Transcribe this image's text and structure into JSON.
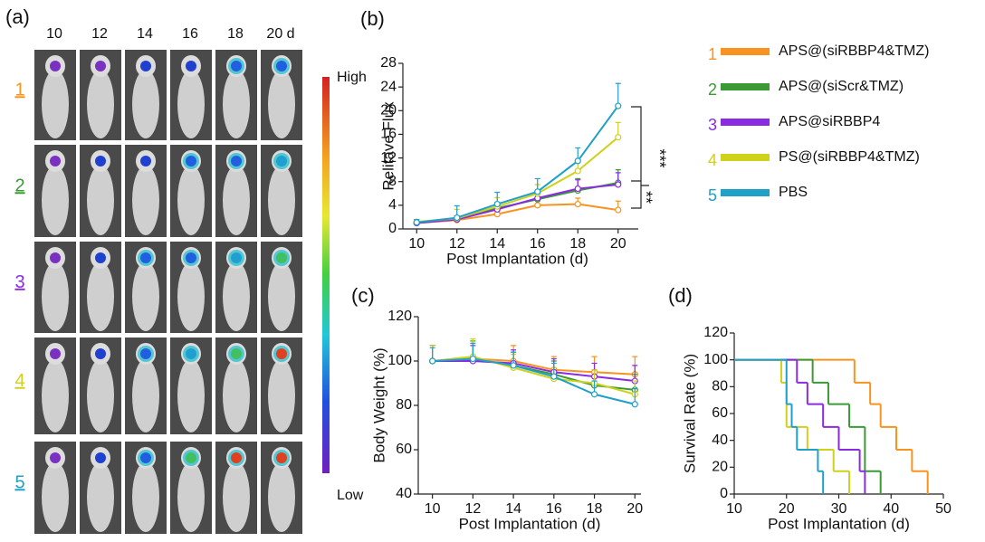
{
  "panel_a": {
    "label": "(a)",
    "days": [
      "10",
      "12",
      "14",
      "16",
      "18",
      "20 d"
    ],
    "scale_high": "High",
    "scale_low": "Low"
  },
  "legend": [
    {
      "label": "1",
      "name": "APS@(siRBBP4&TMZ)",
      "color": "#f7931e"
    },
    {
      "label": "2",
      "name": "APS@(siScr&TMZ)",
      "color": "#3a9b35"
    },
    {
      "label": "3",
      "name": "APS@siRBBP4",
      "color": "#8a2be2"
    },
    {
      "label": "4",
      "name": "PS@(siRBBP4&TMZ)",
      "color": "#cfd11c"
    },
    {
      "label": "5",
      "name": "PBS",
      "color": "#1fa0c8"
    }
  ],
  "chart_data": [
    {
      "type": "line",
      "title": "(b)",
      "y_label": "Relitave Flux",
      "x_label": "Post Implantation (d)",
      "x": [
        10,
        12,
        14,
        16,
        18,
        20
      ],
      "xlim": [
        9,
        21
      ],
      "xticks": [
        10,
        12,
        14,
        16,
        18,
        20
      ],
      "ylim": [
        0,
        28
      ],
      "yticks": [
        0,
        4,
        8,
        12,
        16,
        20,
        24,
        28
      ],
      "annotations": [
        "***",
        "**"
      ],
      "series": [
        {
          "color": "#f7931e",
          "values": [
            1,
            1.5,
            2.5,
            4,
            4.2,
            3.2
          ],
          "errors": [
            0.3,
            0.3,
            0.5,
            0.8,
            1,
            1.5
          ]
        },
        {
          "color": "#3a9b35",
          "values": [
            1,
            1.7,
            3.5,
            5,
            6.5,
            7.8
          ],
          "errors": [
            0.3,
            0.5,
            1,
            1.5,
            2,
            2.2
          ]
        },
        {
          "color": "#8a2be2",
          "values": [
            1,
            1.6,
            3.3,
            5.2,
            6.8,
            7.5
          ],
          "errors": [
            0.3,
            0.5,
            1,
            1.2,
            1.5,
            2
          ]
        },
        {
          "color": "#cfd11c",
          "values": [
            1.2,
            1.8,
            3.8,
            6,
            9.8,
            15.5
          ],
          "errors": [
            0.4,
            1.5,
            1.5,
            1.5,
            1.5,
            2.5
          ]
        },
        {
          "color": "#1fa0c8",
          "values": [
            1.1,
            1.9,
            4.2,
            6.3,
            11.5,
            20.8
          ],
          "errors": [
            0.5,
            2,
            2,
            2.2,
            2.2,
            3.8
          ]
        }
      ]
    },
    {
      "type": "line",
      "title": "(c)",
      "y_label": "Body Weight (%)",
      "x_label": "Post Implantation (d)",
      "x": [
        10,
        12,
        14,
        16,
        18,
        20
      ],
      "xlim": [
        9.3,
        20.3
      ],
      "xticks": [
        10,
        12,
        14,
        16,
        18,
        20
      ],
      "ylim": [
        40,
        120
      ],
      "yticks": [
        40,
        60,
        80,
        100,
        120
      ],
      "series": [
        {
          "color": "#f7931e",
          "values": [
            100,
            101,
            100,
            96,
            95,
            94
          ],
          "errors": [
            7,
            8,
            7,
            6,
            7,
            8
          ]
        },
        {
          "color": "#3a9b35",
          "values": [
            100,
            101,
            98,
            94,
            89,
            87
          ],
          "errors": [
            7,
            8,
            6,
            6,
            7,
            7
          ]
        },
        {
          "color": "#8a2be2",
          "values": [
            100,
            100,
            99,
            95,
            93,
            91
          ],
          "errors": [
            7,
            7,
            6,
            6,
            6,
            7
          ]
        },
        {
          "color": "#cfd11c",
          "values": [
            100,
            102,
            97,
            92,
            90,
            85
          ],
          "errors": [
            7,
            8,
            6,
            5,
            6,
            6
          ]
        },
        {
          "color": "#1fa0c8",
          "values": [
            100,
            101,
            98,
            93,
            85,
            80.5
          ],
          "errors": [
            6,
            7,
            6,
            6,
            6,
            7
          ]
        }
      ]
    },
    {
      "type": "step",
      "title": "(d)",
      "y_label": "Survival Rate (%)",
      "x_label": "Post Implantation (d)",
      "xlim": [
        10,
        50
      ],
      "xticks": [
        10,
        20,
        30,
        40,
        50
      ],
      "ylim": [
        0,
        120
      ],
      "yticks": [
        0,
        20,
        40,
        60,
        80,
        100,
        120
      ],
      "series": [
        {
          "color": "#f7931e",
          "x": [
            10,
            33,
            36,
            38,
            41,
            44,
            47
          ],
          "values": [
            100,
            83,
            67,
            50,
            33,
            17,
            0
          ]
        },
        {
          "color": "#3a9b35",
          "x": [
            10,
            25,
            28,
            32,
            35,
            38
          ],
          "values": [
            100,
            83,
            67,
            50,
            17,
            0
          ]
        },
        {
          "color": "#8a2be2",
          "x": [
            10,
            22,
            24,
            27,
            30,
            34,
            35
          ],
          "values": [
            100,
            83,
            67,
            50,
            33,
            17,
            0
          ]
        },
        {
          "color": "#cfd11c",
          "x": [
            10,
            19,
            20,
            24,
            29,
            32
          ],
          "values": [
            100,
            83,
            50,
            33,
            17,
            0
          ]
        },
        {
          "color": "#1fa0c8",
          "x": [
            10,
            20,
            21,
            22,
            26,
            27
          ],
          "values": [
            100,
            67,
            50,
            33,
            17,
            0
          ]
        }
      ]
    }
  ]
}
